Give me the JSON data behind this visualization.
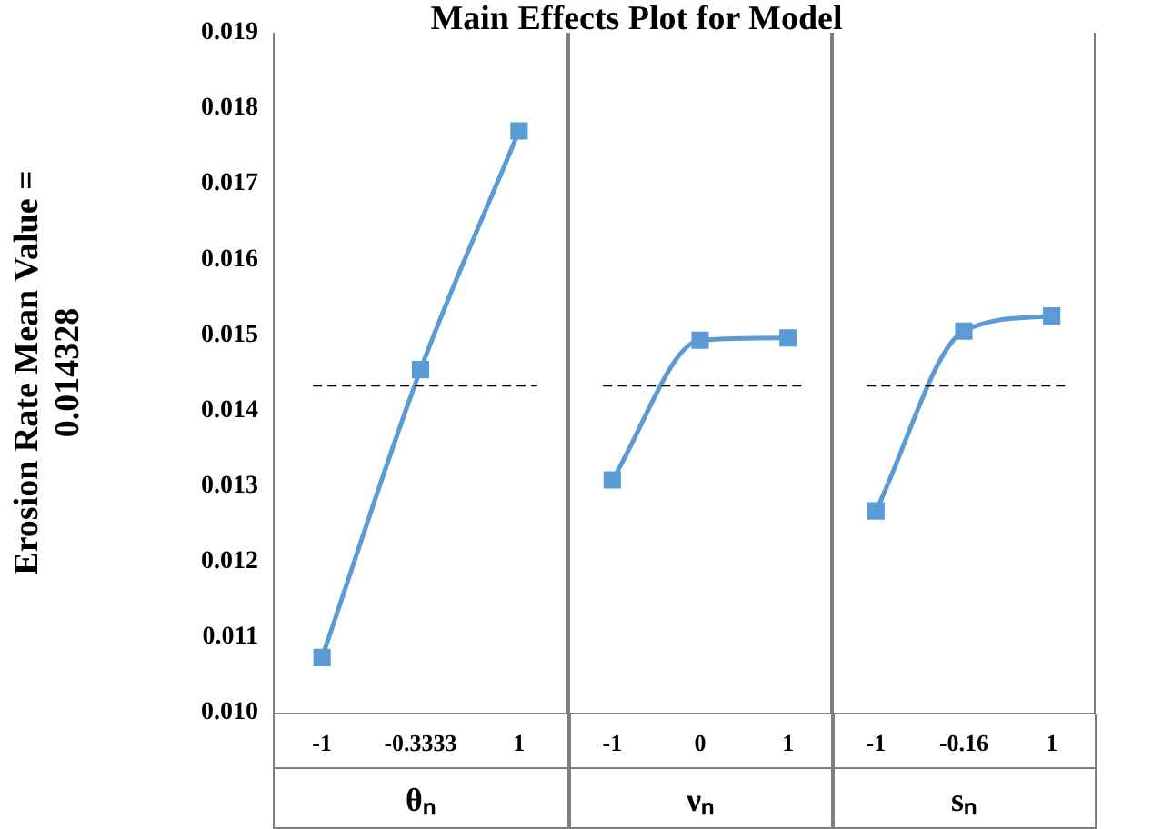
{
  "chart_data": [
    {
      "type": "line",
      "title": "Main Effects Plot for Model",
      "ylabel": "Erosion Rate Mean Value = 0.014328",
      "xlabel": "θₙ",
      "categories": [
        "-1",
        "-0.3333",
        "1"
      ],
      "series": [
        {
          "color": "#5b9bd5",
          "values": [
            0.01073,
            0.01454,
            0.0177
          ]
        }
      ],
      "ylim": [
        0.01,
        0.019
      ],
      "yticks": [
        {
          "value": 0.01,
          "label": "0.010"
        },
        {
          "value": 0.011,
          "label": "0.011"
        },
        {
          "value": 0.012,
          "label": "0.012"
        },
        {
          "value": 0.013,
          "label": "0.013"
        },
        {
          "value": 0.014,
          "label": "0.014"
        },
        {
          "value": 0.015,
          "label": "0.015"
        },
        {
          "value": 0.016,
          "label": "0.016"
        },
        {
          "value": 0.017,
          "label": "0.017"
        },
        {
          "value": 0.018,
          "label": "0.018"
        },
        {
          "value": 0.019,
          "label": "0.019"
        }
      ],
      "ref_lines": [
        {
          "axis": "y",
          "value": 0.014328,
          "color": "#000000",
          "line_style": "dashed"
        }
      ],
      "marker": "square",
      "grid": false,
      "legend": false
    },
    {
      "type": "line",
      "xlabel": "νₙ",
      "categories": [
        "-1",
        "0",
        "1"
      ],
      "series": [
        {
          "color": "#5b9bd5",
          "values": [
            0.01308,
            0.01493,
            0.01496
          ]
        }
      ],
      "ylim": [
        0.01,
        0.019
      ],
      "tick_labels": "x",
      "ref_lines": [
        {
          "axis": "y",
          "value": 0.014328,
          "color": "#000000",
          "line_style": "dashed"
        }
      ],
      "marker": "square",
      "grid": false,
      "legend": false
    },
    {
      "type": "line",
      "xlabel": "sₙ",
      "categories": [
        "-1",
        "-0.16",
        "1"
      ],
      "series": [
        {
          "color": "#5b9bd5",
          "values": [
            0.01267,
            0.01505,
            0.01525
          ]
        }
      ],
      "ylim": [
        0.01,
        0.019
      ],
      "tick_labels": "x",
      "ref_lines": [
        {
          "axis": "y",
          "value": 0.014328,
          "color": "#000000",
          "line_style": "dashed"
        }
      ],
      "marker": "square",
      "grid": false,
      "legend": false
    }
  ]
}
